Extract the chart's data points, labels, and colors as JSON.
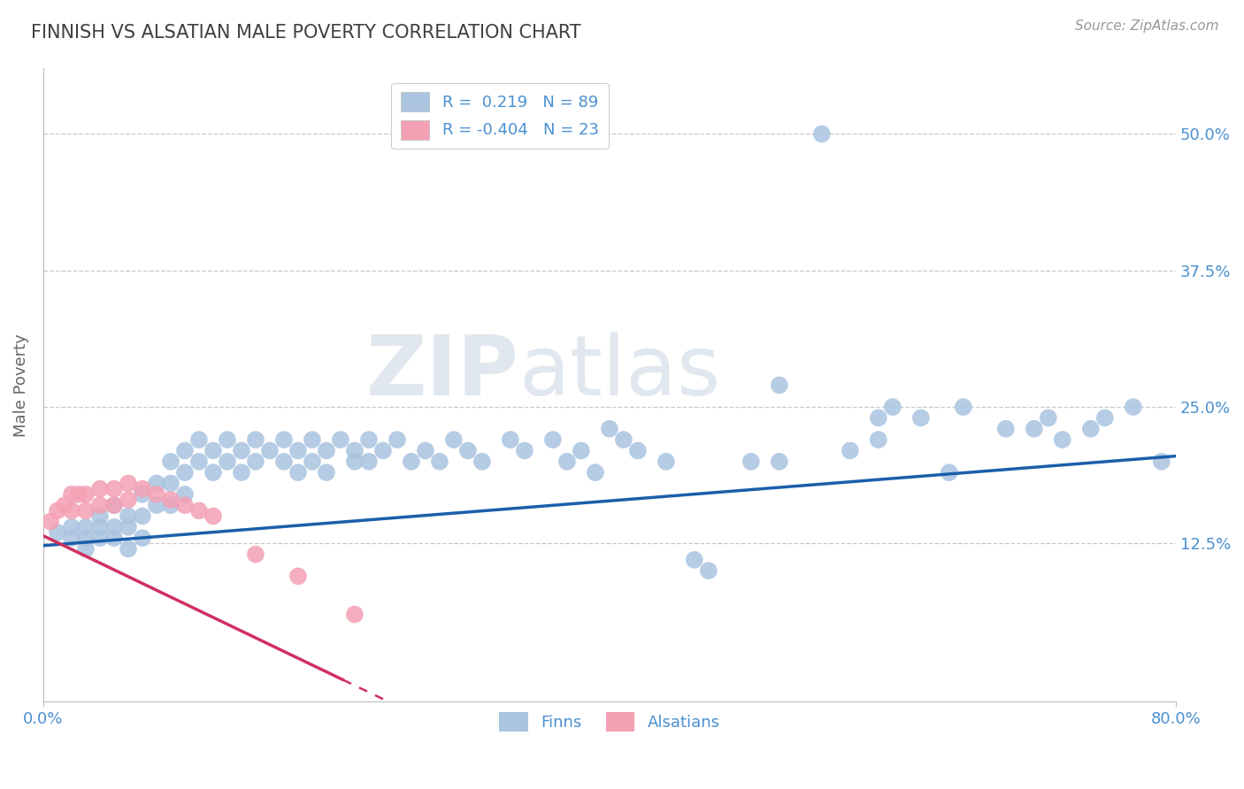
{
  "title": "FINNISH VS ALSATIAN MALE POVERTY CORRELATION CHART",
  "source": "Source: ZipAtlas.com",
  "ylabel_label": "Male Poverty",
  "finn_R": 0.219,
  "finn_N": 89,
  "alsatian_R": -0.404,
  "alsatian_N": 23,
  "finn_color": "#aac4e0",
  "alsatian_color": "#f4a0b4",
  "finn_line_color": "#1a5faa",
  "alsatian_line_color": "#d03060",
  "title_color": "#404040",
  "axis_label_color": "#4a90d0",
  "legend_text_color": "#4a90d0",
  "ytick_labels": [
    "12.5%",
    "25.0%",
    "37.5%",
    "50.0%"
  ],
  "ytick_values": [
    0.125,
    0.25,
    0.375,
    0.5
  ],
  "xlim": [
    0.0,
    0.8
  ],
  "ylim": [
    -0.02,
    0.56
  ],
  "watermark_zip": "ZIP",
  "watermark_atlas": "atlas",
  "background_color": "#ffffff",
  "grid_color": "#c8c8c8",
  "finn_line_x0": 0.0,
  "finn_line_x1": 0.8,
  "finn_line_y0": 0.123,
  "finn_line_y1": 0.205,
  "als_line_x0": 0.0,
  "als_line_x1": 0.26,
  "als_line_y0": 0.132,
  "als_line_y1": -0.03,
  "als_line_dash_x0": 0.155,
  "als_line_dash_x1": 0.27,
  "als_line_dash_y0": 0.04,
  "als_line_dash_y1": -0.025,
  "finn_x": [
    0.01,
    0.02,
    0.02,
    0.03,
    0.03,
    0.03,
    0.04,
    0.04,
    0.04,
    0.05,
    0.05,
    0.05,
    0.06,
    0.06,
    0.06,
    0.07,
    0.07,
    0.07,
    0.08,
    0.08,
    0.09,
    0.09,
    0.09,
    0.1,
    0.1,
    0.1,
    0.11,
    0.11,
    0.12,
    0.12,
    0.13,
    0.13,
    0.14,
    0.14,
    0.15,
    0.15,
    0.16,
    0.17,
    0.17,
    0.18,
    0.18,
    0.19,
    0.19,
    0.2,
    0.2,
    0.21,
    0.22,
    0.22,
    0.23,
    0.23,
    0.24,
    0.25,
    0.26,
    0.27,
    0.28,
    0.29,
    0.3,
    0.31,
    0.33,
    0.34,
    0.36,
    0.37,
    0.38,
    0.39,
    0.4,
    0.41,
    0.42,
    0.44,
    0.46,
    0.47,
    0.5,
    0.52,
    0.55,
    0.57,
    0.59,
    0.6,
    0.62,
    0.65,
    0.7,
    0.72,
    0.75,
    0.77,
    0.79,
    0.59,
    0.64,
    0.68,
    0.71,
    0.74,
    0.52
  ],
  "finn_y": [
    0.135,
    0.13,
    0.14,
    0.14,
    0.13,
    0.12,
    0.14,
    0.15,
    0.13,
    0.14,
    0.16,
    0.13,
    0.15,
    0.14,
    0.12,
    0.17,
    0.15,
    0.13,
    0.18,
    0.16,
    0.2,
    0.18,
    0.16,
    0.19,
    0.21,
    0.17,
    0.22,
    0.2,
    0.21,
    0.19,
    0.2,
    0.22,
    0.21,
    0.19,
    0.22,
    0.2,
    0.21,
    0.2,
    0.22,
    0.21,
    0.19,
    0.22,
    0.2,
    0.21,
    0.19,
    0.22,
    0.2,
    0.21,
    0.22,
    0.2,
    0.21,
    0.22,
    0.2,
    0.21,
    0.2,
    0.22,
    0.21,
    0.2,
    0.22,
    0.21,
    0.22,
    0.2,
    0.21,
    0.19,
    0.23,
    0.22,
    0.21,
    0.2,
    0.11,
    0.1,
    0.2,
    0.2,
    0.5,
    0.21,
    0.24,
    0.25,
    0.24,
    0.25,
    0.23,
    0.22,
    0.24,
    0.25,
    0.2,
    0.22,
    0.19,
    0.23,
    0.24,
    0.23,
    0.27
  ],
  "alsatian_x": [
    0.005,
    0.01,
    0.015,
    0.02,
    0.02,
    0.025,
    0.03,
    0.03,
    0.04,
    0.04,
    0.05,
    0.05,
    0.06,
    0.06,
    0.07,
    0.08,
    0.09,
    0.1,
    0.11,
    0.12,
    0.15,
    0.18,
    0.22
  ],
  "alsatian_y": [
    0.145,
    0.155,
    0.16,
    0.17,
    0.155,
    0.17,
    0.17,
    0.155,
    0.175,
    0.16,
    0.175,
    0.16,
    0.18,
    0.165,
    0.175,
    0.17,
    0.165,
    0.16,
    0.155,
    0.15,
    0.115,
    0.095,
    0.06
  ]
}
